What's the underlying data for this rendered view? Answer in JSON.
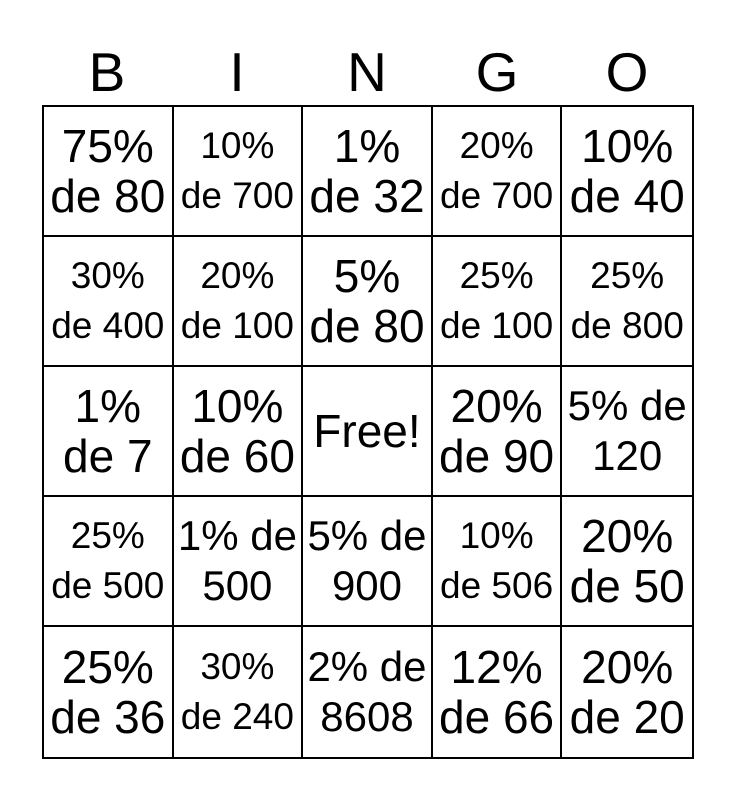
{
  "header": {
    "letters": [
      "B",
      "I",
      "N",
      "G",
      "O"
    ]
  },
  "card": {
    "rows": [
      [
        {
          "line1": "75%",
          "line2": "de 80"
        },
        {
          "line1": "10%",
          "line2": "de 700"
        },
        {
          "line1": "1%",
          "line2": "de 32"
        },
        {
          "line1": "20%",
          "line2": "de 700"
        },
        {
          "line1": "10%",
          "line2": "de 40"
        }
      ],
      [
        {
          "line1": "30%",
          "line2": "de 400"
        },
        {
          "line1": "20%",
          "line2": "de 100"
        },
        {
          "line1": "5%",
          "line2": "de 80"
        },
        {
          "line1": "25%",
          "line2": "de 100"
        },
        {
          "line1": "25%",
          "line2": "de 800"
        }
      ],
      [
        {
          "line1": "1%",
          "line2": "de 7"
        },
        {
          "line1": "10%",
          "line2": "de 60"
        },
        {
          "free": "Free!"
        },
        {
          "line1": "20%",
          "line2": "de 90"
        },
        {
          "line1": "5% de",
          "line2": "120"
        }
      ],
      [
        {
          "line1": "25%",
          "line2": "de 500"
        },
        {
          "line1": "1% de",
          "line2": "500"
        },
        {
          "line1": "5% de",
          "line2": "900"
        },
        {
          "line1": "10%",
          "line2": "de 506"
        },
        {
          "line1": "20%",
          "line2": "de 50"
        }
      ],
      [
        {
          "line1": "25%",
          "line2": "de 36"
        },
        {
          "line1": "30%",
          "line2": "de 240"
        },
        {
          "line1": "2% de",
          "line2": "8608"
        },
        {
          "line1": "12%",
          "line2": "de 66"
        },
        {
          "line1": "20%",
          "line2": "de 20"
        }
      ]
    ]
  },
  "colors": {
    "background": "#ffffff",
    "text": "#000000",
    "border": "#000000"
  }
}
